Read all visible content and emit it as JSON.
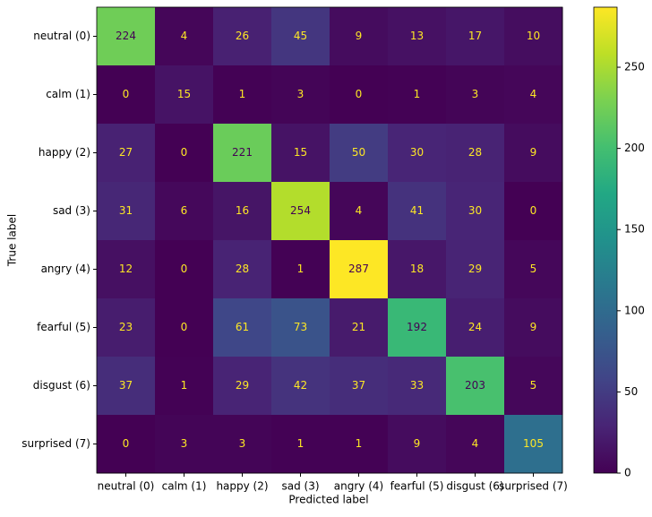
{
  "chart_data": {
    "type": "heatmap",
    "xlabel": "Predicted label",
    "ylabel": "True label",
    "categories": [
      "neutral (0)",
      "calm (1)",
      "happy (2)",
      "sad (3)",
      "angry (4)",
      "fearful (5)",
      "disgust (6)",
      "surprised (7)"
    ],
    "values": [
      [
        224,
        4,
        26,
        45,
        9,
        13,
        17,
        10
      ],
      [
        0,
        15,
        1,
        3,
        0,
        1,
        3,
        4
      ],
      [
        27,
        0,
        221,
        15,
        50,
        30,
        28,
        9
      ],
      [
        31,
        6,
        16,
        254,
        4,
        41,
        30,
        0
      ],
      [
        12,
        0,
        28,
        1,
        287,
        18,
        29,
        5
      ],
      [
        23,
        0,
        61,
        73,
        21,
        192,
        24,
        9
      ],
      [
        37,
        1,
        29,
        42,
        37,
        33,
        203,
        5
      ],
      [
        0,
        3,
        3,
        1,
        1,
        9,
        4,
        105
      ]
    ],
    "colormap": "viridis",
    "zlim": [
      0,
      287
    ],
    "zticks": [
      0,
      50,
      100,
      150,
      200,
      250
    ]
  }
}
